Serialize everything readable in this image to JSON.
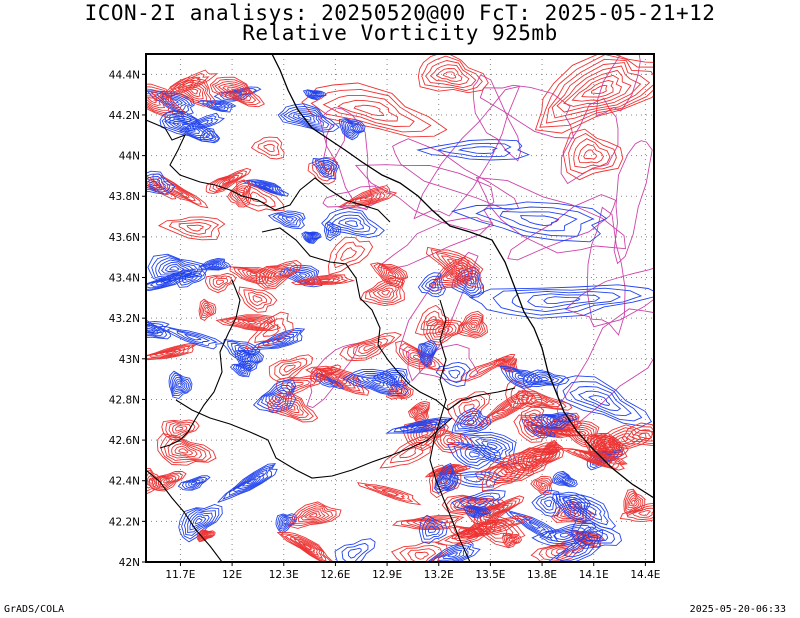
{
  "title_line1": "ICON-2I analisys: 20250520@00 FcT: 2025-05-21+12",
  "title_line2": "Relative Vorticity 925mb",
  "footer_left": "GrADS/COLA",
  "footer_right": "2025-05-20-06:33",
  "colors": {
    "positive_contour": "#ee3333",
    "negative_contour": "#2244ee",
    "zero_contour": "#cc44aa",
    "boundaries": "#000000",
    "grid": "#888888"
  },
  "map": {
    "lon_range": [
      11.5,
      14.45
    ],
    "lat_range": [
      42.0,
      44.5
    ],
    "lon_ticks": [
      "11.7E",
      "12E",
      "12.3E",
      "12.6E",
      "12.9E",
      "13.2E",
      "13.5E",
      "13.8E",
      "14.1E",
      "14.4E"
    ],
    "lon_values": [
      11.7,
      12.0,
      12.3,
      12.6,
      12.9,
      13.2,
      13.5,
      13.8,
      14.1,
      14.4
    ],
    "lat_ticks": [
      "42N",
      "42.2N",
      "42.4N",
      "42.6N",
      "42.8N",
      "43N",
      "43.2N",
      "43.4N",
      "43.6N",
      "43.8N",
      "44N",
      "44.2N",
      "44.4N"
    ],
    "lat_values": [
      42.0,
      42.2,
      42.4,
      42.6,
      42.8,
      43.0,
      43.2,
      43.4,
      43.6,
      43.8,
      44.0,
      44.2,
      44.4
    ],
    "grid_lines": "dotted"
  }
}
